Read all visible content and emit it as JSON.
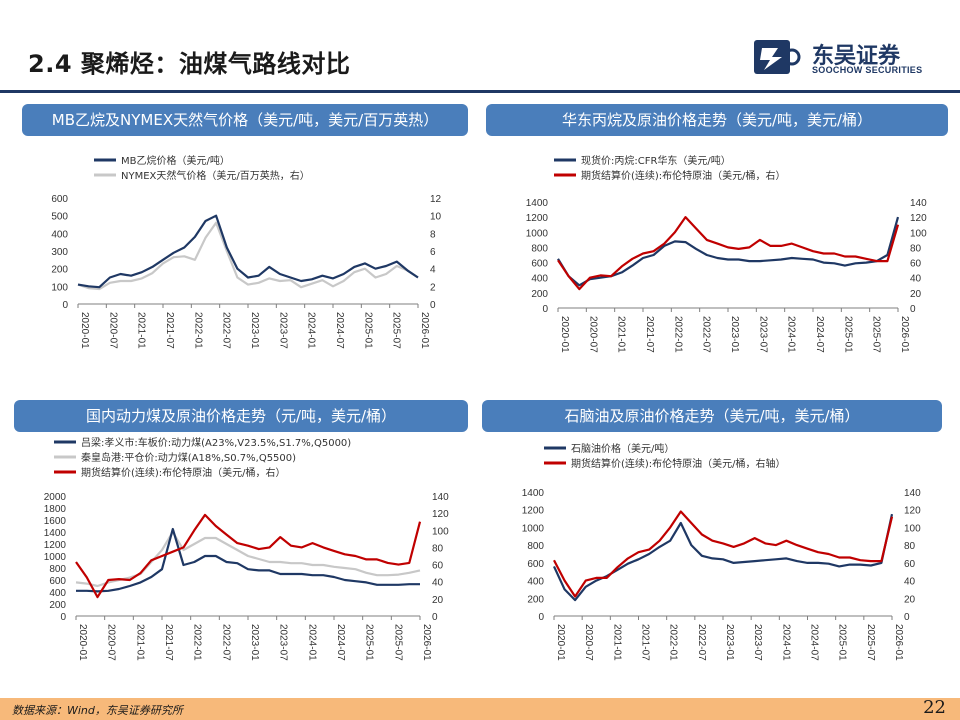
{
  "header": {
    "title": "2.4 聚烯烃：油煤气路线对比",
    "logo_text": "东吴证券",
    "logo_sub": "SOOCHOW SECURITIES"
  },
  "colors": {
    "navy": "#1f3864",
    "gray": "#c8c8c8",
    "red": "#c00000",
    "panel": "#4a7ebb",
    "footer": "#f7b97a"
  },
  "footer": {
    "source": "数据来源：Wind，东吴证券研究所",
    "page": "22"
  },
  "chart_data": [
    {
      "id": "c1",
      "type": "line",
      "title": "MB乙烷及NYMEX天然气价格（美元/吨，美元/百万英热）",
      "x_ticks": [
        "2020-01",
        "2020-07",
        "2021-01",
        "2021-07",
        "2022-01",
        "2022-07",
        "2023-01",
        "2023-07",
        "2024-01",
        "2024-07",
        "2025-01",
        "2025-07",
        "2026-01"
      ],
      "left_axis": {
        "ticks": [
          0,
          100,
          200,
          300,
          400,
          500,
          600
        ],
        "range": [
          0,
          600
        ]
      },
      "right_axis": {
        "ticks": [
          0,
          2,
          4,
          6,
          8,
          10,
          12
        ],
        "range": [
          0,
          12
        ]
      },
      "series": [
        {
          "name": "MB乙烷价格（美元/吨）",
          "axis": "left",
          "color": "#1f3864",
          "values": [
            110,
            100,
            95,
            150,
            170,
            160,
            180,
            210,
            250,
            290,
            320,
            380,
            470,
            500,
            320,
            200,
            150,
            160,
            210,
            170,
            150,
            130,
            140,
            160,
            145,
            170,
            210,
            230,
            200,
            215,
            240,
            190,
            150
          ]
        },
        {
          "name": "NYMEX天然气价格（美元/百万英热，右）",
          "axis": "right",
          "color": "#c8c8c8",
          "values": [
            2.2,
            1.8,
            1.7,
            2.4,
            2.6,
            2.6,
            2.9,
            3.5,
            4.6,
            5.3,
            5.4,
            5.0,
            7.5,
            9.2,
            6.0,
            3.0,
            2.2,
            2.4,
            2.9,
            2.6,
            2.7,
            1.9,
            2.3,
            2.7,
            2.0,
            2.6,
            3.6,
            4.0,
            3.0,
            3.4,
            4.3,
            3.8,
            3.0
          ]
        }
      ]
    },
    {
      "id": "c2",
      "type": "line",
      "title": "华东丙烷及原油价格走势（美元/吨，美元/桶）",
      "x_ticks": [
        "2020-01",
        "2020-07",
        "2021-01",
        "2021-07",
        "2022-01",
        "2022-07",
        "2023-01",
        "2023-07",
        "2024-01",
        "2024-07",
        "2025-01",
        "2025-07",
        "2026-01"
      ],
      "left_axis": {
        "ticks": [
          0,
          200,
          400,
          600,
          800,
          1000,
          1200,
          1400
        ],
        "range": [
          0,
          1400
        ]
      },
      "right_axis": {
        "ticks": [
          0,
          20,
          40,
          60,
          80,
          100,
          120,
          140
        ],
        "range": [
          0,
          140
        ]
      },
      "series": [
        {
          "name": "现货价:丙烷:CFR华东（美元/吨）",
          "axis": "left",
          "color": "#1f3864",
          "values": [
            650,
            420,
            300,
            380,
            400,
            420,
            470,
            560,
            660,
            700,
            820,
            880,
            870,
            780,
            700,
            660,
            640,
            640,
            620,
            620,
            630,
            640,
            660,
            650,
            640,
            600,
            590,
            560,
            590,
            600,
            620,
            700,
            1200
          ]
        },
        {
          "name": "期货结算价(连续):布伦特原油（美元/桶，右）",
          "axis": "right",
          "color": "#c00000",
          "values": [
            63,
            42,
            25,
            40,
            43,
            42,
            55,
            65,
            72,
            75,
            85,
            100,
            120,
            105,
            90,
            85,
            80,
            78,
            80,
            90,
            82,
            82,
            85,
            80,
            75,
            72,
            72,
            68,
            68,
            65,
            62,
            62,
            110
          ]
        }
      ]
    },
    {
      "id": "c3",
      "type": "line",
      "title": "国内动力煤及原油价格走势（元/吨，美元/桶）",
      "x_ticks": [
        "2020-01",
        "2020-07",
        "2021-01",
        "2021-07",
        "2022-01",
        "2022-07",
        "2023-01",
        "2023-07",
        "2024-01",
        "2024-07",
        "2025-01",
        "2025-07",
        "2026-01"
      ],
      "left_axis": {
        "ticks": [
          0,
          200,
          400,
          600,
          800,
          1000,
          1200,
          1400,
          1600,
          1800,
          2000
        ],
        "range": [
          0,
          2000
        ]
      },
      "right_axis": {
        "ticks": [
          0,
          20,
          40,
          60,
          80,
          100,
          120,
          140
        ],
        "range": [
          0,
          140
        ]
      },
      "series": [
        {
          "name": "吕梁:孝义市:车板价:动力煤(A23%,V23.5%,S1.7%,Q5000)",
          "axis": "left",
          "color": "#1f3864",
          "values": [
            420,
            420,
            410,
            420,
            450,
            500,
            560,
            650,
            780,
            1450,
            850,
            900,
            1000,
            1000,
            900,
            880,
            780,
            760,
            760,
            700,
            700,
            700,
            680,
            680,
            650,
            600,
            580,
            560,
            520,
            520,
            520,
            530,
            530
          ]
        },
        {
          "name": "秦皇岛港:平仓价:动力煤(A18%,S0.7%,Q5500)",
          "axis": "left",
          "color": "#c8c8c8",
          "values": [
            560,
            540,
            500,
            560,
            600,
            640,
            700,
            900,
            1100,
            1400,
            1100,
            1200,
            1300,
            1300,
            1200,
            1100,
            1000,
            950,
            900,
            900,
            880,
            880,
            850,
            850,
            820,
            800,
            780,
            720,
            680,
            680,
            690,
            720,
            760
          ]
        },
        {
          "name": "期货结算价(连续):布伦特原油（美元/桶，右）",
          "axis": "right",
          "color": "#c00000",
          "values": [
            63,
            45,
            22,
            42,
            43,
            42,
            50,
            65,
            70,
            75,
            80,
            100,
            118,
            105,
            95,
            85,
            82,
            78,
            80,
            92,
            82,
            80,
            85,
            80,
            76,
            72,
            70,
            66,
            66,
            62,
            60,
            62,
            110
          ]
        }
      ]
    },
    {
      "id": "c4",
      "type": "line",
      "title": "石脑油及原油价格走势（美元/吨，美元/桶）",
      "x_ticks": [
        "2020-01",
        "2020-07",
        "2021-01",
        "2021-07",
        "2022-01",
        "2022-07",
        "2023-01",
        "2023-07",
        "2024-01",
        "2024-07",
        "2025-01",
        "2025-07",
        "2026-01"
      ],
      "left_axis": {
        "ticks": [
          0,
          200,
          400,
          600,
          800,
          1000,
          1200,
          1400
        ],
        "range": [
          0,
          1400
        ]
      },
      "right_axis": {
        "ticks": [
          0,
          20,
          40,
          60,
          80,
          100,
          120,
          140
        ],
        "range": [
          0,
          140
        ]
      },
      "series": [
        {
          "name": "石脑油价格（美元/吨）",
          "axis": "left",
          "color": "#1f3864",
          "values": [
            560,
            300,
            180,
            330,
            400,
            450,
            520,
            590,
            640,
            700,
            780,
            850,
            1050,
            800,
            680,
            650,
            640,
            600,
            610,
            620,
            630,
            640,
            650,
            620,
            600,
            600,
            590,
            560,
            580,
            580,
            570,
            600,
            1150
          ]
        },
        {
          "name": "期货结算价(连续):布伦特原油（美元/桶，右轴）",
          "axis": "right",
          "color": "#c00000",
          "values": [
            63,
            40,
            22,
            40,
            43,
            43,
            55,
            65,
            72,
            75,
            85,
            100,
            118,
            105,
            92,
            85,
            82,
            78,
            82,
            88,
            82,
            80,
            85,
            80,
            76,
            72,
            70,
            66,
            66,
            63,
            62,
            62,
            112
          ]
        }
      ]
    }
  ]
}
